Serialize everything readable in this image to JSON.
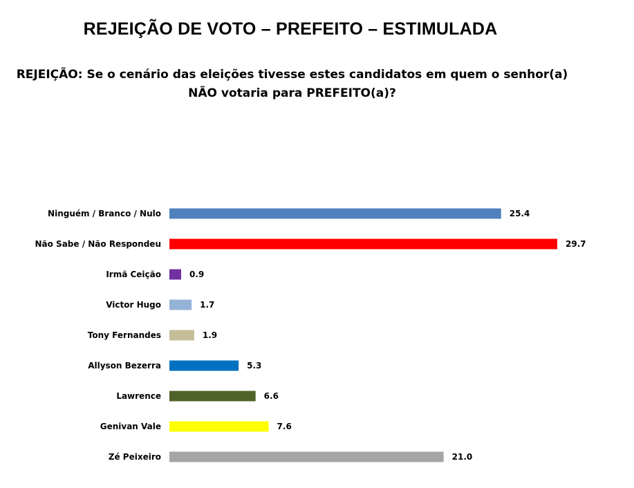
{
  "title": "REJEIÇÃO DE VOTO – PREFEITO – ESTIMULADA",
  "subtitle": {
    "line1": "REJEIÇÃO: Se o cenário das eleições tivesse estes candidatos em quem o senhor(a)",
    "line2": "NÃO votaria para PREFEITO(a)?"
  },
  "chart_data": {
    "type": "bar",
    "orientation": "horizontal",
    "categories": [
      "Ninguém / Branco / Nulo",
      "Não Sabe / Não Respondeu",
      "Irmã Ceição",
      "Victor Hugo",
      "Tony Fernandes",
      "Allyson Bezerra",
      "Lawrence",
      "Genivan Vale",
      "Zé Peixeiro"
    ],
    "values": [
      25.4,
      29.7,
      0.9,
      1.7,
      1.9,
      5.3,
      6.6,
      7.6,
      21.0
    ],
    "value_labels": [
      "25.4",
      "29.7",
      "0.9",
      "1.7",
      "1.9",
      "5.3",
      "6.6",
      "7.6",
      "21.0"
    ],
    "colors": [
      "#4f81bd",
      "#ff0000",
      "#7030a0",
      "#95b3d7",
      "#c4bd97",
      "#0070c0",
      "#4f6228",
      "#ffff00",
      "#a6a6a6"
    ],
    "xlim": [
      0,
      29.7
    ],
    "grid": false,
    "legend": "none"
  }
}
